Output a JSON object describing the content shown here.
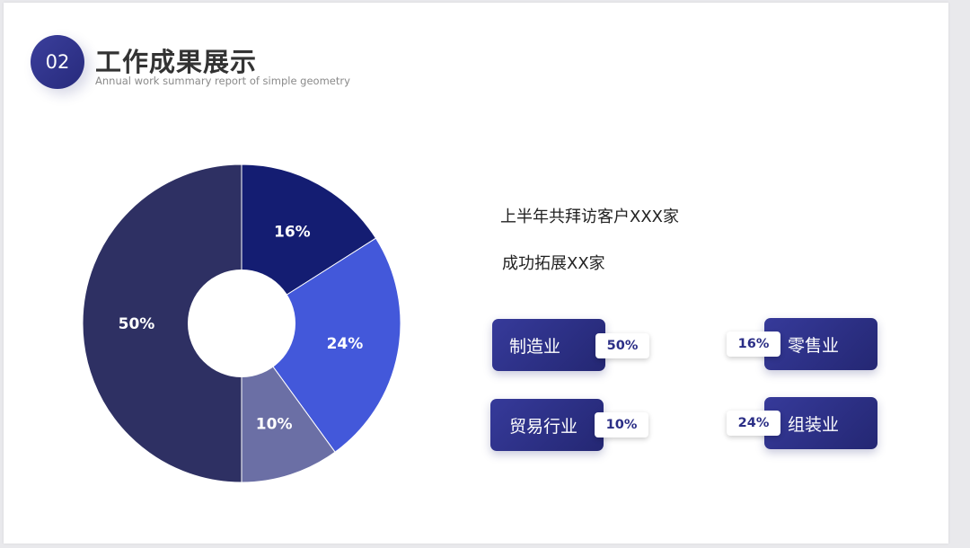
{
  "header": {
    "number": "02",
    "title": "工作成果展示",
    "subtitle": "Annual work summary report of simple geometry"
  },
  "stats": {
    "line1": "上半年共拜访客户XXX家",
    "line2": "成功拓展XX家"
  },
  "chart_data": {
    "type": "pie",
    "donut": true,
    "slices": [
      {
        "value": 16,
        "label": "16%",
        "color": "#141d72"
      },
      {
        "value": 24,
        "label": "24%",
        "color": "#4358da"
      },
      {
        "value": 10,
        "label": "10%",
        "color": "#6b6fa5"
      },
      {
        "value": 50,
        "label": "50%",
        "color": "#2e3063"
      }
    ]
  },
  "categories": [
    {
      "name": "制造业",
      "percent": "50%"
    },
    {
      "name": "零售业",
      "percent": "16%"
    },
    {
      "name": "贸易行业",
      "percent": "10%"
    },
    {
      "name": "组装业",
      "percent": "24%"
    }
  ]
}
